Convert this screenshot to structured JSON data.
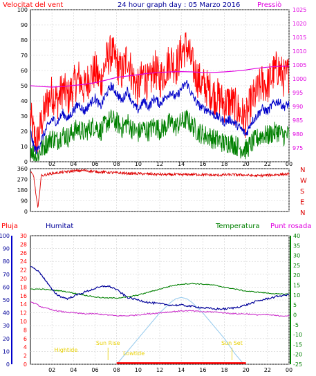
{
  "header": {
    "left_title": "Velocitat del vent",
    "center_title": "24 hour graph day : 05 Marzo 2016",
    "right_title": "Pressiò"
  },
  "colors": {
    "wind_gust": "#ff0000",
    "wind_avg": "#0000c8",
    "wind_min": "#008000",
    "pressure": "#e000e0",
    "direction": "#dd0000",
    "rain": "#ff0000",
    "humidity": "#000099",
    "temperature": "#008000",
    "dewpoint": "#cc33cc",
    "solar": "#99ccee",
    "sun_labels": "#e8d000",
    "axis_black": "#000000"
  },
  "chart_data": [
    {
      "type": "line",
      "id": "wind-pressure",
      "title": "24 hour graph day : 05 Marzo 2016",
      "x_ticks": [
        "02",
        "04",
        "06",
        "08",
        "10",
        "12",
        "14",
        "16",
        "18",
        "20",
        "22",
        "00"
      ],
      "xlim": [
        0,
        24
      ],
      "y_left": {
        "label": "Velocitat del vent",
        "ylim": [
          0,
          100
        ],
        "ticks": [
          0,
          10,
          20,
          30,
          40,
          50,
          60,
          70,
          80,
          90,
          100
        ]
      },
      "y_right": {
        "label": "Pressiò",
        "ylim": [
          970,
          1025
        ],
        "ticks": [
          975,
          980,
          985,
          990,
          995,
          1000,
          1005,
          1010,
          1015,
          1020,
          1025
        ]
      },
      "grid": true,
      "series": [
        {
          "key": "gust",
          "axis": "left",
          "x": [
            0.0,
            0.3,
            0.6,
            1.0,
            1.5,
            2.0,
            2.5,
            3.0,
            3.5,
            4.0,
            4.5,
            5.0,
            5.5,
            6.0,
            6.5,
            7.0,
            7.5,
            8.0,
            8.5,
            9.0,
            9.5,
            10.0,
            10.5,
            11.0,
            11.5,
            12.0,
            12.5,
            13.0,
            13.5,
            14.0,
            14.5,
            15.0,
            15.5,
            16.0,
            16.5,
            17.0,
            17.5,
            18.0,
            18.5,
            19.0,
            19.5,
            20.0,
            20.5,
            21.0,
            21.5,
            22.0,
            22.5,
            23.0,
            23.5,
            24.0
          ],
          "values": [
            30,
            18,
            12,
            25,
            38,
            45,
            40,
            48,
            42,
            50,
            55,
            48,
            56,
            60,
            52,
            66,
            72,
            65,
            58,
            70,
            55,
            48,
            58,
            50,
            62,
            54,
            60,
            68,
            62,
            72,
            76,
            64,
            55,
            50,
            48,
            44,
            42,
            38,
            40,
            36,
            32,
            28,
            40,
            45,
            52,
            50,
            58,
            62,
            55,
            58
          ]
        },
        {
          "key": "avg",
          "axis": "left",
          "x": [
            0.0,
            0.3,
            0.6,
            1.0,
            1.5,
            2.0,
            2.5,
            3.0,
            3.5,
            4.0,
            4.5,
            5.0,
            5.5,
            6.0,
            6.5,
            7.0,
            7.5,
            8.0,
            8.5,
            9.0,
            9.5,
            10.0,
            10.5,
            11.0,
            11.5,
            12.0,
            12.5,
            13.0,
            13.5,
            14.0,
            14.5,
            15.0,
            15.5,
            16.0,
            16.5,
            17.0,
            17.5,
            18.0,
            18.5,
            19.0,
            19.5,
            20.0,
            20.5,
            21.0,
            21.5,
            22.0,
            22.5,
            23.0,
            23.5,
            24.0
          ],
          "values": [
            20,
            10,
            7,
            14,
            22,
            28,
            26,
            32,
            28,
            34,
            38,
            33,
            38,
            42,
            36,
            44,
            50,
            45,
            40,
            47,
            38,
            34,
            40,
            36,
            42,
            38,
            42,
            46,
            42,
            48,
            52,
            44,
            38,
            35,
            34,
            31,
            29,
            26,
            28,
            25,
            22,
            18,
            26,
            30,
            35,
            33,
            38,
            40,
            36,
            38
          ]
        },
        {
          "key": "min",
          "axis": "left",
          "x": [
            0.0,
            0.3,
            0.6,
            1.0,
            1.5,
            2.0,
            2.5,
            3.0,
            3.5,
            4.0,
            4.5,
            5.0,
            5.5,
            6.0,
            6.5,
            7.0,
            7.5,
            8.0,
            8.5,
            9.0,
            9.5,
            10.0,
            10.5,
            11.0,
            11.5,
            12.0,
            12.5,
            13.0,
            13.5,
            14.0,
            14.5,
            15.0,
            15.5,
            16.0,
            16.5,
            17.0,
            17.5,
            18.0,
            18.5,
            19.0,
            19.5,
            20.0,
            20.5,
            21.0,
            21.5,
            22.0,
            22.5,
            23.0,
            23.5,
            24.0
          ],
          "values": [
            10,
            5,
            3,
            8,
            12,
            16,
            14,
            18,
            16,
            20,
            22,
            19,
            22,
            24,
            20,
            25,
            28,
            26,
            22,
            26,
            21,
            19,
            22,
            20,
            24,
            21,
            23,
            26,
            23,
            26,
            28,
            24,
            20,
            18,
            17,
            15,
            14,
            12,
            13,
            11,
            9,
            8,
            12,
            15,
            18,
            17,
            19,
            20,
            17,
            18
          ]
        },
        {
          "key": "pressure",
          "axis": "right",
          "x": [
            0.0,
            1.0,
            2.0,
            3.0,
            4.0,
            5.0,
            6.0,
            7.0,
            8.0,
            9.0,
            10.0,
            11.0,
            12.0,
            13.0,
            14.0,
            15.0,
            16.0,
            17.0,
            18.0,
            19.0,
            20.0,
            21.0,
            22.0,
            23.0,
            24.0
          ],
          "values": [
            997.5,
            997.2,
            997.0,
            997.2,
            997.6,
            998.0,
            998.6,
            999.5,
            1000.5,
            1001.0,
            1001.5,
            1002.0,
            1002.3,
            1002.5,
            1002.6,
            1002.5,
            1002.3,
            1002.3,
            1002.5,
            1002.8,
            1003.2,
            1003.8,
            1004.2,
            1004.5,
            1004.6
          ]
        }
      ]
    },
    {
      "type": "scatter",
      "id": "wind-direction",
      "x_ticks": [],
      "xlim": [
        0,
        24
      ],
      "ylim": [
        0,
        360
      ],
      "y_ticks": [
        0,
        90,
        180,
        270,
        360
      ],
      "y_right_labels": [
        "N",
        "W",
        "S",
        "E",
        "N"
      ],
      "grid": true,
      "series": [
        {
          "key": "direction",
          "x": [
            0.0,
            0.3,
            0.5,
            0.7,
            1.0,
            2.0,
            3.0,
            4.0,
            5.0,
            6.0,
            7.0,
            8.0,
            9.0,
            10.0,
            11.0,
            12.0,
            13.0,
            14.0,
            15.0,
            16.0,
            17.0,
            18.0,
            19.0,
            20.0,
            21.0,
            22.0,
            23.0,
            24.0
          ],
          "values": [
            330,
            300,
            150,
            20,
            300,
            320,
            330,
            340,
            345,
            335,
            330,
            325,
            320,
            318,
            315,
            312,
            310,
            310,
            312,
            310,
            305,
            308,
            310,
            305,
            300,
            305,
            310,
            315
          ]
        }
      ]
    },
    {
      "type": "line",
      "id": "temp-humidity",
      "header_labels": {
        "rain": "Pluja",
        "humidity": "Humitat",
        "temperature": "Temperatura",
        "dewpoint": "Punt rosada"
      },
      "x_ticks": [
        "02",
        "04",
        "06",
        "08",
        "10",
        "12",
        "14",
        "16",
        "18",
        "20",
        "22",
        "00"
      ],
      "xlim": [
        0,
        24
      ],
      "y_humidity": {
        "ylim": [
          0,
          100
        ],
        "ticks": [
          0,
          10,
          20,
          30,
          40,
          50,
          60,
          70,
          80,
          90,
          100
        ]
      },
      "y_rain": {
        "ylim": [
          0,
          30
        ],
        "ticks": [
          0,
          2,
          4,
          6,
          8,
          10,
          12,
          14,
          16,
          18,
          20,
          22,
          24,
          26,
          28,
          30
        ]
      },
      "y_temperature": {
        "ylim": [
          -25,
          40
        ],
        "ticks": [
          -25,
          -20,
          -15,
          -10,
          -5,
          0,
          5,
          10,
          15,
          20,
          25,
          30,
          35,
          40
        ]
      },
      "grid": true,
      "series": [
        {
          "key": "humidity",
          "axis": "humidity",
          "x": [
            0.0,
            0.5,
            1.0,
            1.5,
            2.0,
            2.5,
            3.0,
            3.5,
            4.0,
            5.0,
            6.0,
            6.5,
            7.0,
            7.5,
            8.0,
            8.5,
            9.0,
            10.0,
            11.0,
            12.0,
            13.0,
            14.0,
            15.0,
            16.0,
            17.0,
            18.0,
            19.0,
            20.0,
            21.0,
            22.0,
            23.0,
            24.0
          ],
          "values": [
            76,
            74,
            70,
            64,
            58,
            54,
            52,
            51,
            53,
            56,
            59,
            60,
            61,
            60,
            58,
            55,
            52,
            50,
            48,
            47,
            46,
            46,
            45,
            44,
            43,
            43,
            44,
            46,
            49,
            51,
            53,
            54
          ]
        },
        {
          "key": "temperature",
          "axis": "temperature",
          "x": [
            0.0,
            1.0,
            2.0,
            3.0,
            4.0,
            5.0,
            6.0,
            7.0,
            8.0,
            9.0,
            10.0,
            11.0,
            12.0,
            13.0,
            14.0,
            15.0,
            16.0,
            17.0,
            18.0,
            19.0,
            20.0,
            21.0,
            22.0,
            23.0,
            24.0
          ],
          "values": [
            13.0,
            13.0,
            12.5,
            12.0,
            11.0,
            10.0,
            9.0,
            8.5,
            8.5,
            9.0,
            10.0,
            11.5,
            13.0,
            14.5,
            15.5,
            15.8,
            15.5,
            15.0,
            14.0,
            13.0,
            12.0,
            11.5,
            11.0,
            10.5,
            10.5
          ]
        },
        {
          "key": "dewpoint",
          "axis": "temperature",
          "x": [
            0.0,
            0.5,
            1.0,
            2.0,
            3.0,
            4.0,
            5.0,
            6.0,
            7.0,
            8.0,
            9.0,
            10.0,
            11.0,
            12.0,
            13.0,
            14.0,
            15.0,
            16.0,
            17.0,
            18.0,
            19.0,
            20.0,
            21.0,
            22.0,
            23.0,
            24.0
          ],
          "values": [
            6.5,
            5.5,
            4.0,
            2.5,
            1.5,
            1.0,
            0.5,
            0.5,
            0.0,
            -0.5,
            -0.5,
            0.0,
            0.5,
            1.0,
            1.5,
            2.0,
            2.0,
            1.5,
            1.5,
            1.0,
            0.5,
            0.5,
            0.0,
            0.0,
            -0.5,
            -0.5
          ]
        },
        {
          "key": "solar",
          "axis": "humidity",
          "x": [
            8.0,
            9.0,
            10.0,
            11.0,
            12.0,
            13.0,
            13.5,
            14.0,
            14.5,
            15.0,
            16.0,
            17.0,
            18.0,
            19.0,
            19.8
          ],
          "values": [
            0,
            10,
            20,
            30,
            40,
            48,
            51,
            52,
            51,
            48,
            40,
            30,
            20,
            8,
            0
          ]
        },
        {
          "key": "rain",
          "axis": "rain",
          "x": [
            8.0,
            20.0
          ],
          "values": [
            0.1,
            0.1
          ]
        }
      ],
      "annotations": {
        "hightide_label": "Hightide",
        "sunrise_label": "Sun Rise",
        "lowtide_label": "Lowtide",
        "sunset_label": "Sun Set",
        "hightide_x": 3.3,
        "sunrise_x": 7.2,
        "lowtide_x": 9.6,
        "sunset_x": 18.7
      }
    }
  ]
}
